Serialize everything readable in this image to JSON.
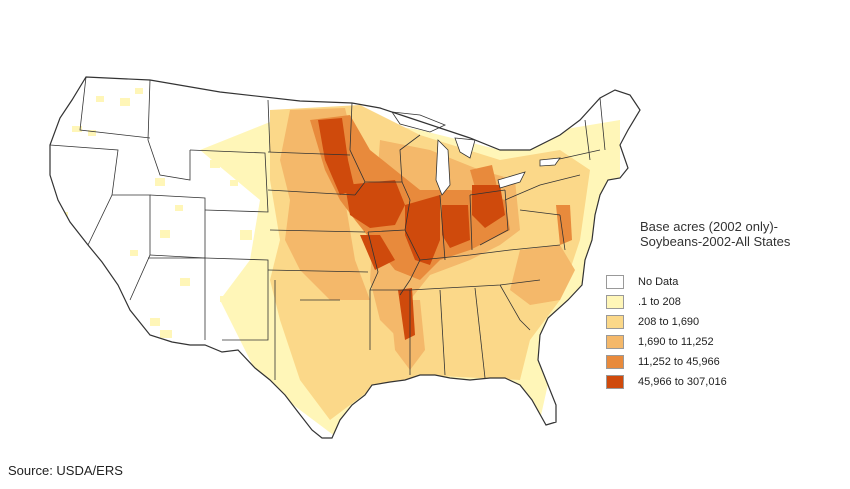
{
  "legend": {
    "title_line1": "Base acres (2002 only)-",
    "title_line2": "Soybeans-2002-All States",
    "items": [
      {
        "label": "No Data",
        "color": "#ffffff"
      },
      {
        "label": ".1 to 208",
        "color": "#fff6b8"
      },
      {
        "label": "208 to 1,690",
        "color": "#fbd889"
      },
      {
        "label": "1,690 to 11,252",
        "color": "#f4b86a"
      },
      {
        "label": "11,252 to 45,966",
        "color": "#e88a3c"
      },
      {
        "label": "45,966 to 307,016",
        "color": "#cf4a0c"
      }
    ]
  },
  "source": "Source: USDA/ERS"
}
